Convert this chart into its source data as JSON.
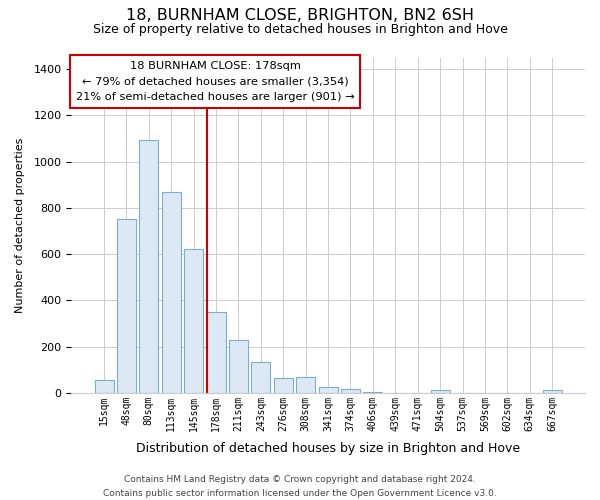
{
  "title": "18, BURNHAM CLOSE, BRIGHTON, BN2 6SH",
  "subtitle": "Size of property relative to detached houses in Brighton and Hove",
  "xlabel": "Distribution of detached houses by size in Brighton and Hove",
  "ylabel": "Number of detached properties",
  "bar_labels": [
    "15sqm",
    "48sqm",
    "80sqm",
    "113sqm",
    "145sqm",
    "178sqm",
    "211sqm",
    "243sqm",
    "276sqm",
    "308sqm",
    "341sqm",
    "374sqm",
    "406sqm",
    "439sqm",
    "471sqm",
    "504sqm",
    "537sqm",
    "569sqm",
    "602sqm",
    "634sqm",
    "667sqm"
  ],
  "bar_values": [
    55,
    750,
    1095,
    870,
    620,
    350,
    230,
    135,
    65,
    70,
    25,
    18,
    5,
    0,
    0,
    12,
    0,
    0,
    0,
    0,
    12
  ],
  "bar_fill_color": "#dce9f5",
  "bar_edge_color": "#7aaed0",
  "vline_color": "#cc0000",
  "vline_idx": 5,
  "ylim": [
    0,
    1450
  ],
  "yticks": [
    0,
    200,
    400,
    600,
    800,
    1000,
    1200,
    1400
  ],
  "annotation_title": "18 BURNHAM CLOSE: 178sqm",
  "annotation_line1": "← 79% of detached houses are smaller (3,354)",
  "annotation_line2": "21% of semi-detached houses are larger (901) →",
  "annotation_box_color": "#ffffff",
  "annotation_box_edge_color": "#cc0000",
  "footer_line1": "Contains HM Land Registry data © Crown copyright and database right 2024.",
  "footer_line2": "Contains public sector information licensed under the Open Government Licence v3.0.",
  "background_color": "#ffffff",
  "grid_color": "#cccccc"
}
